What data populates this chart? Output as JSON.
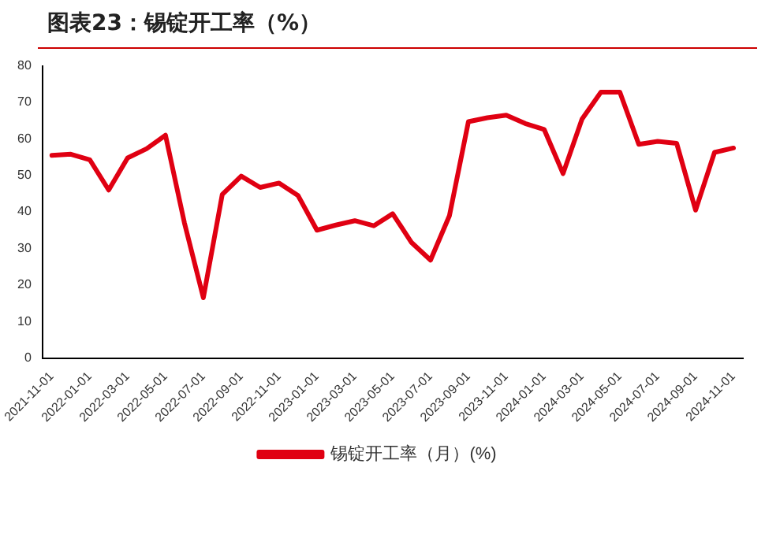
{
  "chart_data": {
    "type": "line",
    "title": "图表23：锡锭开工率（%）",
    "categories": [
      "2021-11-01",
      null,
      "2022-01-01",
      null,
      "2022-03-01",
      null,
      "2022-05-01",
      null,
      "2022-07-01",
      null,
      "2022-09-01",
      null,
      "2022-11-01",
      null,
      "2023-01-01",
      null,
      "2023-03-01",
      null,
      "2023-05-01",
      null,
      "2023-07-01",
      null,
      "2023-09-01",
      null,
      "2023-11-01",
      null,
      "2024-01-01",
      null,
      "2024-03-01",
      null,
      "2024-05-01",
      null,
      "2024-07-01",
      null,
      "2024-09-01",
      null,
      "2024-11-01"
    ],
    "series": [
      {
        "name": "锡锭开工率（月）(%)",
        "color": "#e00012",
        "values": [
          55.5,
          55.8,
          54.3,
          46,
          54.8,
          57.3,
          61,
          37,
          16.5,
          44.8,
          49.8,
          46.7,
          47.9,
          44.5,
          35,
          36.4,
          37.6,
          36.2,
          39.5,
          31.6,
          26.8,
          39,
          64.7,
          65.8,
          66.5,
          64.2,
          62.6,
          50.5,
          65.4,
          72.8,
          72.8,
          58.5,
          59.3,
          58.8,
          40.5,
          56.3,
          57.5
        ]
      }
    ],
    "ylim": [
      0,
      80
    ],
    "yticks": [
      0,
      10,
      20,
      30,
      40,
      50,
      60,
      70,
      80
    ],
    "grid": false,
    "legend": "bottom",
    "marker": "none",
    "line_style": "solid"
  }
}
